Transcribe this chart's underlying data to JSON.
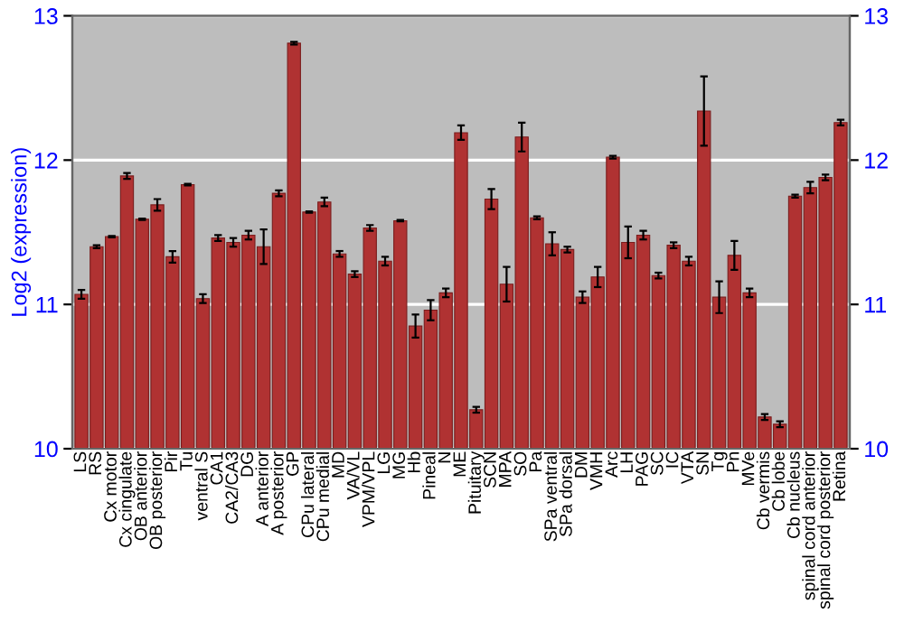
{
  "chart_data": {
    "type": "bar",
    "ylabel": "Log2 (expression)",
    "categories": [
      "LS",
      "RS",
      "Cx motor",
      "Cx cingulate",
      "OB anterior",
      "OB posterior",
      "Pir",
      "Tu",
      "ventral S",
      "CA1",
      "CA2/CA3",
      "DG",
      "A anterior",
      "A posterior",
      "GP",
      "CPu lateral",
      "CPu medial",
      "MD",
      "VA/VL",
      "VPM/VPL",
      "LG",
      "MG",
      "Hb",
      "Pineal",
      "N",
      "ME",
      "Pituitary",
      "SCN",
      "MPA",
      "SO",
      "Pa",
      "SPa ventral",
      "SPa dorsal",
      "DM",
      "VMH",
      "Arc",
      "LH",
      "PAG",
      "SC",
      "IC",
      "VTA",
      "SN",
      "Tg",
      "Pn",
      "MVe",
      "Cb vermis",
      "Cb lobe",
      "Cb nucleus",
      "spinal cord anterior",
      "spinal cord posterior",
      "Retina"
    ],
    "values": [
      11.07,
      11.4,
      11.47,
      11.89,
      11.59,
      11.69,
      11.33,
      11.83,
      11.04,
      11.46,
      11.43,
      11.48,
      11.4,
      11.77,
      12.81,
      11.64,
      11.71,
      11.35,
      11.21,
      11.53,
      11.3,
      11.58,
      10.85,
      10.96,
      11.08,
      12.19,
      10.27,
      11.73,
      11.14,
      12.16,
      11.6,
      11.42,
      11.38,
      11.05,
      11.19,
      12.02,
      11.43,
      11.48,
      11.2,
      11.41,
      11.3,
      12.34,
      11.05,
      11.34,
      11.08,
      10.22,
      10.17,
      11.75,
      11.81,
      11.88,
      12.26
    ],
    "errors": [
      0.03,
      0.01,
      0.005,
      0.02,
      0.005,
      0.04,
      0.04,
      0.005,
      0.03,
      0.02,
      0.03,
      0.03,
      0.12,
      0.02,
      0.01,
      0.005,
      0.03,
      0.02,
      0.02,
      0.02,
      0.03,
      0.005,
      0.08,
      0.07,
      0.03,
      0.05,
      0.02,
      0.07,
      0.12,
      0.1,
      0.01,
      0.08,
      0.02,
      0.04,
      0.07,
      0.01,
      0.11,
      0.03,
      0.02,
      0.02,
      0.03,
      0.24,
      0.11,
      0.1,
      0.03,
      0.02,
      0.02,
      0.01,
      0.04,
      0.02,
      0.02
    ],
    "color": "#b03232",
    "ylim": [
      10,
      13
    ],
    "yticks": [
      10,
      11,
      12,
      13
    ],
    "y2lim": [
      10,
      13
    ],
    "y2ticks": [
      10,
      11,
      12,
      13
    ],
    "grid": "y"
  }
}
